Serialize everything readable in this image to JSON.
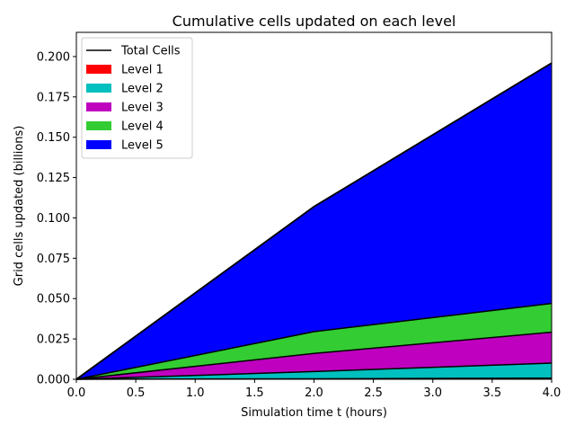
{
  "chart_data": {
    "type": "area",
    "title": "Cumulative cells updated on each level",
    "xlabel": "Simulation time t (hours)",
    "ylabel": "Grid cells updated (billions)",
    "x": [
      0.0,
      2.0,
      4.0
    ],
    "xlim": [
      0.0,
      4.0
    ],
    "ylim": [
      0.0,
      0.215
    ],
    "xticks": [
      0.0,
      0.5,
      1.0,
      1.5,
      2.0,
      2.5,
      3.0,
      3.5,
      4.0
    ],
    "xtick_labels": [
      "0.0",
      "0.5",
      "1.0",
      "1.5",
      "2.0",
      "2.5",
      "3.0",
      "3.5",
      "4.0"
    ],
    "yticks": [
      0.0,
      0.025,
      0.05,
      0.075,
      0.1,
      0.125,
      0.15,
      0.175,
      0.2
    ],
    "ytick_labels": [
      "0.000",
      "0.025",
      "0.050",
      "0.075",
      "0.100",
      "0.125",
      "0.150",
      "0.175",
      "0.200"
    ],
    "stacked": true,
    "grid": false,
    "legend_position": "top-left",
    "total": {
      "name": "Total Cells",
      "color": "#000000",
      "values": [
        0.0,
        0.107,
        0.196
      ]
    },
    "series": [
      {
        "name": "Level 1",
        "color": "#ff0000",
        "values": [
          0.0,
          0.0003,
          0.0007
        ]
      },
      {
        "name": "Level 2",
        "color": "#00bfbf",
        "values": [
          0.0,
          0.0045,
          0.0093
        ]
      },
      {
        "name": "Level 3",
        "color": "#bf00bf",
        "values": [
          0.0,
          0.0112,
          0.0192
        ]
      },
      {
        "name": "Level 4",
        "color": "#33cc33",
        "values": [
          0.0,
          0.0135,
          0.0178
        ]
      },
      {
        "name": "Level 5",
        "color": "#0000ff",
        "values": [
          0.0,
          0.0775,
          0.149
        ]
      }
    ]
  }
}
